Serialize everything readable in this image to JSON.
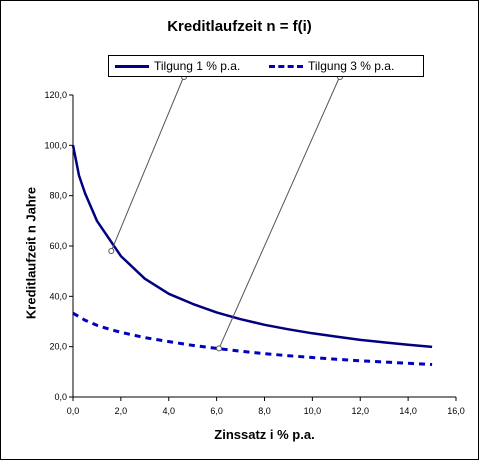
{
  "chart_data": {
    "type": "line",
    "title": "Kreditlaufzeit n = f(i)",
    "xlabel": "Zinssatz i % p.a.",
    "ylabel": "Kreditlaufzeit n Jahre",
    "xlim": [
      0,
      16
    ],
    "ylim": [
      0,
      120
    ],
    "xticks": [
      "0,0",
      "2,0",
      "4,0",
      "6,0",
      "8,0",
      "10,0",
      "12,0",
      "14,0",
      "16,0"
    ],
    "yticks": [
      "0,0",
      "20,0",
      "40,0",
      "60,0",
      "80,0",
      "100,0",
      "120,0"
    ],
    "legend_position": "top",
    "grid": false,
    "series": [
      {
        "name": "Tilgung 1 % p.a.",
        "color": "#000080",
        "style": "solid",
        "x": [
          0,
          0.25,
          0.5,
          1,
          1.5,
          2,
          3,
          4,
          5,
          6,
          7,
          8,
          9,
          10,
          11,
          12,
          13,
          14,
          15
        ],
        "y": [
          100,
          88,
          81,
          70,
          63,
          56,
          47,
          41,
          37,
          33.6,
          30.9,
          28.7,
          26.9,
          25.3,
          24,
          22.7,
          21.7,
          20.8,
          19.9
        ]
      },
      {
        "name": "Tilgung 3 % p.a.",
        "color": "#0000c0",
        "style": "dashed",
        "x": [
          0,
          0.5,
          1,
          1.5,
          2,
          3,
          4,
          5,
          6,
          7,
          8,
          9,
          10,
          11,
          12,
          13,
          14,
          15
        ],
        "y": [
          33.3,
          30.5,
          28.5,
          27,
          25.7,
          23.6,
          22,
          20.5,
          19.3,
          18.2,
          17.2,
          16.4,
          15.7,
          15,
          14.4,
          13.9,
          13.4,
          12.9
        ]
      }
    ],
    "annotations": [
      {
        "from_legend": "Tilgung 1 % p.a.",
        "to": [
          1.6,
          58
        ]
      },
      {
        "from_legend": "Tilgung 3 % p.a.",
        "to": [
          6.1,
          19.3
        ]
      }
    ]
  }
}
